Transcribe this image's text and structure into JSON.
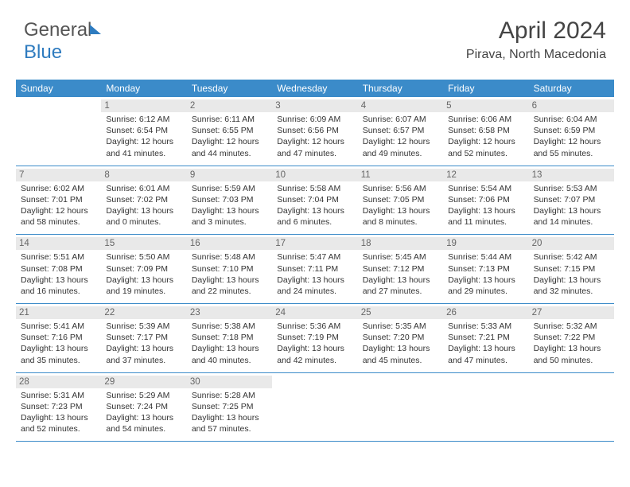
{
  "brand": {
    "part1": "General",
    "part2": "Blue"
  },
  "title": "April 2024",
  "location": "Pirava, North Macedonia",
  "dayHeaders": [
    "Sunday",
    "Monday",
    "Tuesday",
    "Wednesday",
    "Thursday",
    "Friday",
    "Saturday"
  ],
  "colors": {
    "headerBg": "#3b8bc9",
    "headerText": "#ffffff",
    "dayNumBg": "#e9e9e9",
    "bodyText": "#333333"
  },
  "weeks": [
    [
      null,
      {
        "n": "1",
        "sunrise": "6:12 AM",
        "sunset": "6:54 PM",
        "daylight": "12 hours and 41 minutes."
      },
      {
        "n": "2",
        "sunrise": "6:11 AM",
        "sunset": "6:55 PM",
        "daylight": "12 hours and 44 minutes."
      },
      {
        "n": "3",
        "sunrise": "6:09 AM",
        "sunset": "6:56 PM",
        "daylight": "12 hours and 47 minutes."
      },
      {
        "n": "4",
        "sunrise": "6:07 AM",
        "sunset": "6:57 PM",
        "daylight": "12 hours and 49 minutes."
      },
      {
        "n": "5",
        "sunrise": "6:06 AM",
        "sunset": "6:58 PM",
        "daylight": "12 hours and 52 minutes."
      },
      {
        "n": "6",
        "sunrise": "6:04 AM",
        "sunset": "6:59 PM",
        "daylight": "12 hours and 55 minutes."
      }
    ],
    [
      {
        "n": "7",
        "sunrise": "6:02 AM",
        "sunset": "7:01 PM",
        "daylight": "12 hours and 58 minutes."
      },
      {
        "n": "8",
        "sunrise": "6:01 AM",
        "sunset": "7:02 PM",
        "daylight": "13 hours and 0 minutes."
      },
      {
        "n": "9",
        "sunrise": "5:59 AM",
        "sunset": "7:03 PM",
        "daylight": "13 hours and 3 minutes."
      },
      {
        "n": "10",
        "sunrise": "5:58 AM",
        "sunset": "7:04 PM",
        "daylight": "13 hours and 6 minutes."
      },
      {
        "n": "11",
        "sunrise": "5:56 AM",
        "sunset": "7:05 PM",
        "daylight": "13 hours and 8 minutes."
      },
      {
        "n": "12",
        "sunrise": "5:54 AM",
        "sunset": "7:06 PM",
        "daylight": "13 hours and 11 minutes."
      },
      {
        "n": "13",
        "sunrise": "5:53 AM",
        "sunset": "7:07 PM",
        "daylight": "13 hours and 14 minutes."
      }
    ],
    [
      {
        "n": "14",
        "sunrise": "5:51 AM",
        "sunset": "7:08 PM",
        "daylight": "13 hours and 16 minutes."
      },
      {
        "n": "15",
        "sunrise": "5:50 AM",
        "sunset": "7:09 PM",
        "daylight": "13 hours and 19 minutes."
      },
      {
        "n": "16",
        "sunrise": "5:48 AM",
        "sunset": "7:10 PM",
        "daylight": "13 hours and 22 minutes."
      },
      {
        "n": "17",
        "sunrise": "5:47 AM",
        "sunset": "7:11 PM",
        "daylight": "13 hours and 24 minutes."
      },
      {
        "n": "18",
        "sunrise": "5:45 AM",
        "sunset": "7:12 PM",
        "daylight": "13 hours and 27 minutes."
      },
      {
        "n": "19",
        "sunrise": "5:44 AM",
        "sunset": "7:13 PM",
        "daylight": "13 hours and 29 minutes."
      },
      {
        "n": "20",
        "sunrise": "5:42 AM",
        "sunset": "7:15 PM",
        "daylight": "13 hours and 32 minutes."
      }
    ],
    [
      {
        "n": "21",
        "sunrise": "5:41 AM",
        "sunset": "7:16 PM",
        "daylight": "13 hours and 35 minutes."
      },
      {
        "n": "22",
        "sunrise": "5:39 AM",
        "sunset": "7:17 PM",
        "daylight": "13 hours and 37 minutes."
      },
      {
        "n": "23",
        "sunrise": "5:38 AM",
        "sunset": "7:18 PM",
        "daylight": "13 hours and 40 minutes."
      },
      {
        "n": "24",
        "sunrise": "5:36 AM",
        "sunset": "7:19 PM",
        "daylight": "13 hours and 42 minutes."
      },
      {
        "n": "25",
        "sunrise": "5:35 AM",
        "sunset": "7:20 PM",
        "daylight": "13 hours and 45 minutes."
      },
      {
        "n": "26",
        "sunrise": "5:33 AM",
        "sunset": "7:21 PM",
        "daylight": "13 hours and 47 minutes."
      },
      {
        "n": "27",
        "sunrise": "5:32 AM",
        "sunset": "7:22 PM",
        "daylight": "13 hours and 50 minutes."
      }
    ],
    [
      {
        "n": "28",
        "sunrise": "5:31 AM",
        "sunset": "7:23 PM",
        "daylight": "13 hours and 52 minutes."
      },
      {
        "n": "29",
        "sunrise": "5:29 AM",
        "sunset": "7:24 PM",
        "daylight": "13 hours and 54 minutes."
      },
      {
        "n": "30",
        "sunrise": "5:28 AM",
        "sunset": "7:25 PM",
        "daylight": "13 hours and 57 minutes."
      },
      null,
      null,
      null,
      null
    ]
  ]
}
